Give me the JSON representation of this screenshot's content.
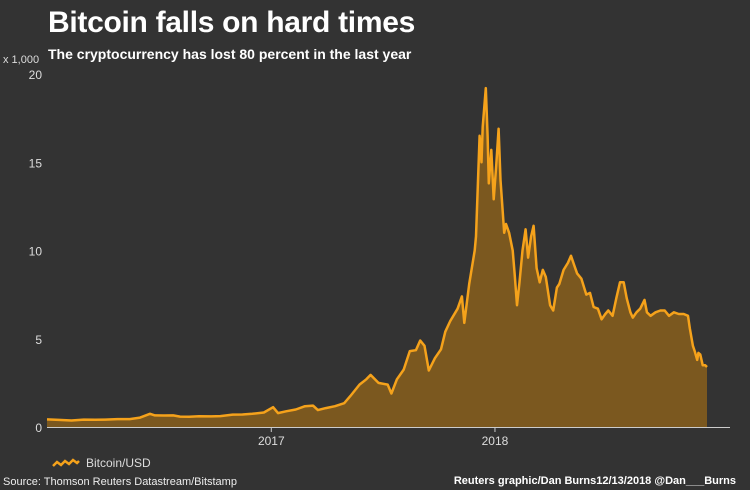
{
  "title": "Bitcoin falls on hard times",
  "subtitle": "The cryptocurrency has lost 80 percent in the last year",
  "unit_label": "x 1,000",
  "source": "Source: Thomson Reuters Datastream/Bitstamp",
  "credit": "Reuters graphic/Dan Burns12/13/2018 @Dan___Burns",
  "colors": {
    "background": "#333333",
    "line": "#f5a21b",
    "fill": "#7b581f",
    "axis": "#cccccc"
  },
  "chart_data": {
    "type": "area",
    "ylim": [
      0,
      20
    ],
    "yticks": [
      0,
      5,
      10,
      15,
      20
    ],
    "xticks": [
      {
        "label": "2017",
        "x": "2017-01-01"
      },
      {
        "label": "2018",
        "x": "2018-01-01"
      }
    ],
    "xlim": [
      "2016-01-01",
      "2018-12-13"
    ],
    "legend": [
      "Bitcoin/USD"
    ],
    "legend_position": "bottom-left",
    "grid": false,
    "series": [
      {
        "name": "Bitcoin/USD",
        "points": [
          [
            "2016-01-01",
            0.43
          ],
          [
            "2016-01-20",
            0.4
          ],
          [
            "2016-02-10",
            0.37
          ],
          [
            "2016-03-01",
            0.42
          ],
          [
            "2016-03-20",
            0.41
          ],
          [
            "2016-04-05",
            0.42
          ],
          [
            "2016-04-25",
            0.45
          ],
          [
            "2016-05-15",
            0.45
          ],
          [
            "2016-06-01",
            0.53
          ],
          [
            "2016-06-17",
            0.75
          ],
          [
            "2016-06-25",
            0.66
          ],
          [
            "2016-07-10",
            0.65
          ],
          [
            "2016-07-25",
            0.66
          ],
          [
            "2016-08-05",
            0.59
          ],
          [
            "2016-08-20",
            0.58
          ],
          [
            "2016-09-05",
            0.61
          ],
          [
            "2016-09-25",
            0.6
          ],
          [
            "2016-10-10",
            0.62
          ],
          [
            "2016-10-30",
            0.7
          ],
          [
            "2016-11-15",
            0.71
          ],
          [
            "2016-12-01",
            0.75
          ],
          [
            "2016-12-20",
            0.82
          ],
          [
            "2017-01-04",
            1.12
          ],
          [
            "2017-01-12",
            0.79
          ],
          [
            "2017-01-25",
            0.89
          ],
          [
            "2017-02-10",
            0.99
          ],
          [
            "2017-02-25",
            1.18
          ],
          [
            "2017-03-10",
            1.21
          ],
          [
            "2017-03-18",
            0.96
          ],
          [
            "2017-03-31",
            1.07
          ],
          [
            "2017-04-15",
            1.18
          ],
          [
            "2017-04-30",
            1.35
          ],
          [
            "2017-05-10",
            1.75
          ],
          [
            "2017-05-25",
            2.4
          ],
          [
            "2017-06-05",
            2.7
          ],
          [
            "2017-06-12",
            2.95
          ],
          [
            "2017-06-25",
            2.5
          ],
          [
            "2017-07-10",
            2.4
          ],
          [
            "2017-07-16",
            1.9
          ],
          [
            "2017-07-25",
            2.7
          ],
          [
            "2017-08-05",
            3.25
          ],
          [
            "2017-08-15",
            4.3
          ],
          [
            "2017-08-25",
            4.35
          ],
          [
            "2017-09-01",
            4.9
          ],
          [
            "2017-09-08",
            4.6
          ],
          [
            "2017-09-15",
            3.2
          ],
          [
            "2017-09-25",
            3.9
          ],
          [
            "2017-10-05",
            4.4
          ],
          [
            "2017-10-12",
            5.4
          ],
          [
            "2017-10-20",
            6.0
          ],
          [
            "2017-11-01",
            6.7
          ],
          [
            "2017-11-08",
            7.4
          ],
          [
            "2017-11-12",
            5.9
          ],
          [
            "2017-11-20",
            8.1
          ],
          [
            "2017-11-29",
            10.0
          ],
          [
            "2017-12-01",
            10.8
          ],
          [
            "2017-12-07",
            16.5
          ],
          [
            "2017-12-10",
            15.0
          ],
          [
            "2017-12-12",
            17.0
          ],
          [
            "2017-12-17",
            19.2
          ],
          [
            "2017-12-20",
            16.5
          ],
          [
            "2017-12-22",
            13.8
          ],
          [
            "2017-12-26",
            15.7
          ],
          [
            "2017-12-30",
            12.9
          ],
          [
            "2018-01-03",
            14.8
          ],
          [
            "2018-01-07",
            16.9
          ],
          [
            "2018-01-10",
            14.0
          ],
          [
            "2018-01-16",
            11.0
          ],
          [
            "2018-01-19",
            11.5
          ],
          [
            "2018-01-24",
            11.0
          ],
          [
            "2018-01-30",
            10.0
          ],
          [
            "2018-02-02",
            8.7
          ],
          [
            "2018-02-06",
            6.9
          ],
          [
            "2018-02-10",
            8.2
          ],
          [
            "2018-02-15",
            10.0
          ],
          [
            "2018-02-20",
            11.2
          ],
          [
            "2018-02-24",
            9.6
          ],
          [
            "2018-03-01",
            10.8
          ],
          [
            "2018-03-05",
            11.4
          ],
          [
            "2018-03-10",
            9.0
          ],
          [
            "2018-03-15",
            8.2
          ],
          [
            "2018-03-20",
            8.9
          ],
          [
            "2018-03-25",
            8.5
          ],
          [
            "2018-04-01",
            6.9
          ],
          [
            "2018-04-06",
            6.6
          ],
          [
            "2018-04-12",
            7.9
          ],
          [
            "2018-04-16",
            8.1
          ],
          [
            "2018-04-23",
            8.9
          ],
          [
            "2018-04-30",
            9.3
          ],
          [
            "2018-05-05",
            9.7
          ],
          [
            "2018-05-10",
            9.2
          ],
          [
            "2018-05-15",
            8.7
          ],
          [
            "2018-05-22",
            8.4
          ],
          [
            "2018-05-30",
            7.5
          ],
          [
            "2018-06-05",
            7.6
          ],
          [
            "2018-06-11",
            6.8
          ],
          [
            "2018-06-18",
            6.7
          ],
          [
            "2018-06-24",
            6.1
          ],
          [
            "2018-06-30",
            6.4
          ],
          [
            "2018-07-05",
            6.6
          ],
          [
            "2018-07-12",
            6.3
          ],
          [
            "2018-07-18",
            7.3
          ],
          [
            "2018-07-24",
            8.2
          ],
          [
            "2018-07-30",
            8.2
          ],
          [
            "2018-08-04",
            7.3
          ],
          [
            "2018-08-10",
            6.5
          ],
          [
            "2018-08-14",
            6.2
          ],
          [
            "2018-08-20",
            6.5
          ],
          [
            "2018-08-26",
            6.7
          ],
          [
            "2018-09-02",
            7.2
          ],
          [
            "2018-09-06",
            6.5
          ],
          [
            "2018-09-12",
            6.3
          ],
          [
            "2018-09-20",
            6.5
          ],
          [
            "2018-09-28",
            6.6
          ],
          [
            "2018-10-05",
            6.6
          ],
          [
            "2018-10-12",
            6.3
          ],
          [
            "2018-10-20",
            6.5
          ],
          [
            "2018-10-28",
            6.4
          ],
          [
            "2018-11-05",
            6.4
          ],
          [
            "2018-11-12",
            6.3
          ],
          [
            "2018-11-15",
            5.6
          ],
          [
            "2018-11-20",
            4.6
          ],
          [
            "2018-11-23",
            4.3
          ],
          [
            "2018-11-27",
            3.8
          ],
          [
            "2018-11-29",
            4.2
          ],
          [
            "2018-12-02",
            4.1
          ],
          [
            "2018-12-06",
            3.5
          ],
          [
            "2018-12-10",
            3.5
          ],
          [
            "2018-12-13",
            3.4
          ]
        ]
      }
    ]
  }
}
